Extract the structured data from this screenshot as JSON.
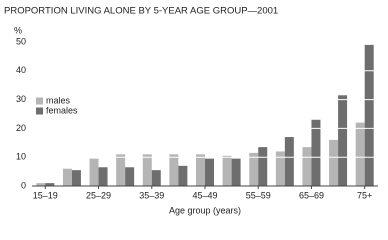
{
  "chart_data": {
    "type": "bar",
    "title": "PROPORTION LIVING ALONE BY 5-YEAR AGE GROUP—2001",
    "y_label": "%",
    "x_label": "Age group (years)",
    "categories": [
      "15–19",
      null,
      "25–29",
      null,
      "35–39",
      null,
      "45–49",
      null,
      "55–59",
      null,
      "65–69",
      null,
      "75+"
    ],
    "series": [
      {
        "name": "males",
        "color": "#b5b5b5",
        "values": [
          1,
          6,
          9.5,
          11,
          11,
          11,
          11,
          10.5,
          11.5,
          12,
          13.5,
          16,
          22
        ]
      },
      {
        "name": "females",
        "color": "#6e6e6e",
        "values": [
          1,
          5.5,
          6.5,
          6.5,
          5.5,
          7,
          9.5,
          9.5,
          13.5,
          17,
          23,
          31.5,
          49
        ]
      }
    ],
    "ylim": [
      0,
      50
    ],
    "yticks": [
      0,
      10,
      20,
      30,
      40,
      50
    ],
    "grid": true,
    "legend": "left"
  }
}
